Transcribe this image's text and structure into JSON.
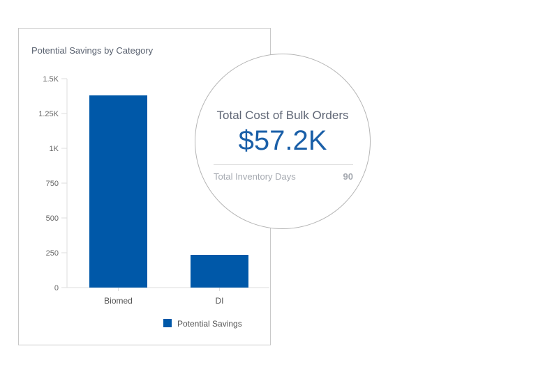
{
  "chart_data": {
    "type": "bar",
    "title": "Potential Savings by Category",
    "categories": [
      "Biomed",
      "DI"
    ],
    "series": [
      {
        "name": "Potential Savings",
        "values": [
          1380,
          235
        ],
        "color": "#0058a8"
      }
    ],
    "yticks": [
      "0",
      "250",
      "500",
      "750",
      "1K",
      "1.25K",
      "1.5K"
    ],
    "ytick_values": [
      0,
      250,
      500,
      750,
      1000,
      1250,
      1500
    ],
    "ylim": [
      0,
      1500
    ],
    "grid": false,
    "legend": "bottom-right"
  },
  "kpi": {
    "label": "Total Cost of Bulk Orders",
    "value": "$57.2K",
    "sub_label": "Total Inventory Days",
    "sub_value": "90"
  }
}
